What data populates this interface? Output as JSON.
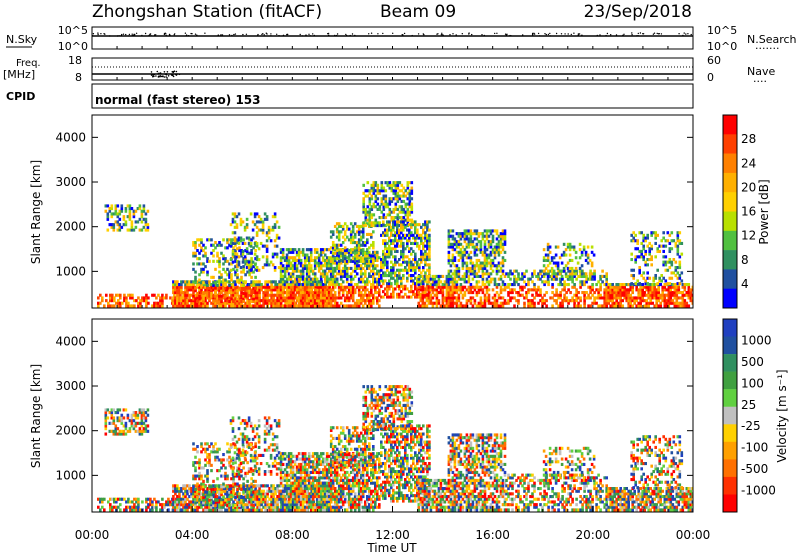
{
  "header": {
    "station": "Zhongshan Station (fitACF)",
    "beam": "Beam 09",
    "date": "23/Sep/2018"
  },
  "panels": {
    "nsky": {
      "label": "N.Sky",
      "left_ticks": [
        "10^5",
        "10^0"
      ],
      "right_ticks": [
        "10^5",
        "10^0"
      ],
      "right_label": "N.Search",
      "right_label_dots": "......."
    },
    "freq": {
      "label_top": "Freq.",
      "label_unit": "[MHz]",
      "left_ticks": [
        "18",
        "8"
      ],
      "right_ticks": [
        "60",
        "0"
      ],
      "right_label": "Nave",
      "right_label_dots": "...."
    },
    "cpid": {
      "label": "CPID",
      "text": "normal (fast stereo) 153"
    }
  },
  "chart_data": [
    {
      "type": "heatmap",
      "name": "power",
      "ylabel": "Slant Range [km]",
      "xlabel": "",
      "ylim": [
        180,
        4500
      ],
      "xlim": [
        0,
        24
      ],
      "y_ticks": [
        "1000",
        "2000",
        "3000",
        "4000"
      ],
      "colorbar": {
        "label": "Power [dB]",
        "ticks": [
          "28",
          "24",
          "20",
          "16",
          "12",
          "8",
          "4"
        ],
        "colors": [
          "#ff0000",
          "#ff4000",
          "#ff8000",
          "#ffb000",
          "#ffd000",
          "#b8e000",
          "#50c040",
          "#309060",
          "#2050a0",
          "#0000ff"
        ]
      }
    },
    {
      "type": "heatmap",
      "name": "velocity",
      "ylabel": "Slant Range [km]",
      "xlabel": "Time UT",
      "ylim": [
        180,
        4500
      ],
      "xlim": [
        0,
        24
      ],
      "y_ticks": [
        "1000",
        "2000",
        "3000",
        "4000"
      ],
      "x_ticks": [
        "00:00",
        "04:00",
        "08:00",
        "12:00",
        "16:00",
        "20:00",
        "00:00"
      ],
      "colorbar": {
        "label": "Velocity [m s⁻¹]",
        "ticks": [
          "1000",
          "500",
          "100",
          "25",
          "-25",
          "-100",
          "-500",
          "-1000"
        ],
        "colors": [
          "#2040c0",
          "#2050a0",
          "#309060",
          "#40a040",
          "#60d040",
          "#c0c0c0",
          "#ffd000",
          "#ffa000",
          "#ff7000",
          "#ff3000",
          "#ff0000"
        ]
      }
    }
  ]
}
